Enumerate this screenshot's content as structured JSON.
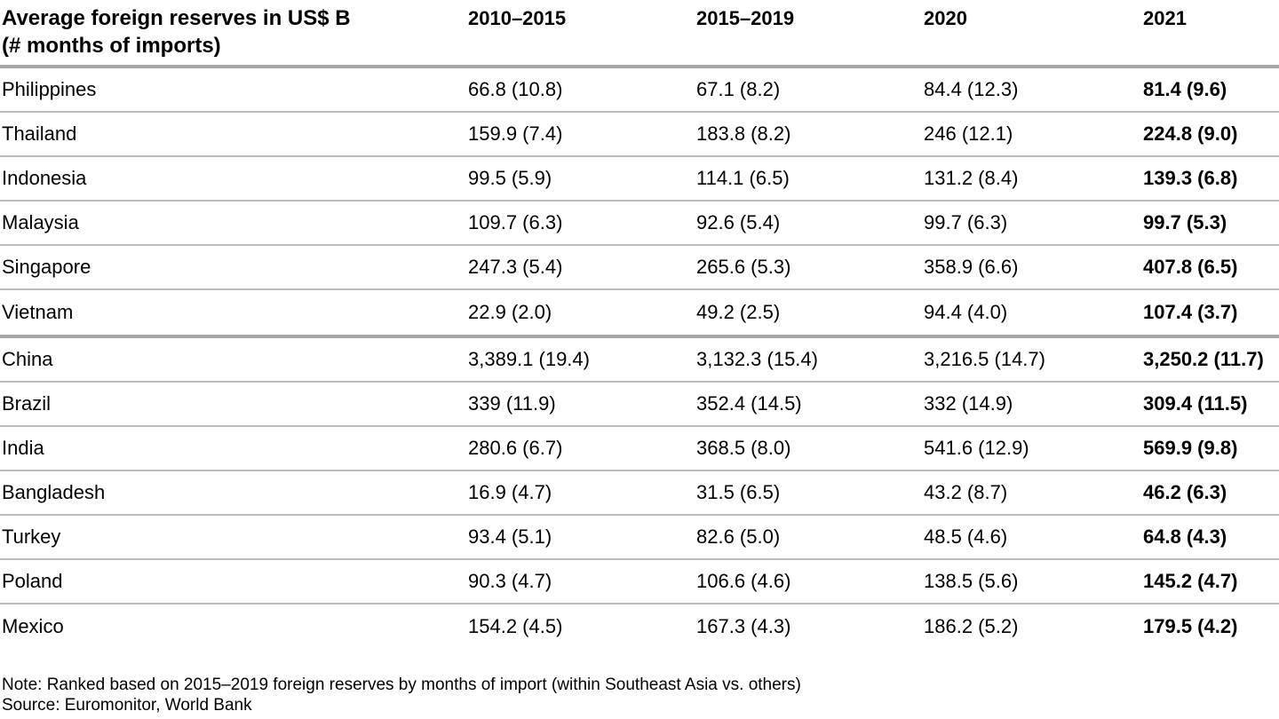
{
  "table": {
    "header": {
      "title_line1": "Average foreign reserves in US$ B",
      "title_line2": "(# months of imports)",
      "columns": [
        "2010–2015",
        "2015–2019",
        "2020",
        "2021"
      ]
    },
    "groups": [
      {
        "region": "Southeast Asia",
        "rows": [
          {
            "country": "Philippines",
            "values": [
              "66.8 (10.8)",
              "67.1 (8.2)",
              "84.4 (12.3)",
              "81.4 (9.6)"
            ]
          },
          {
            "country": "Thailand",
            "values": [
              "159.9 (7.4)",
              "183.8 (8.2)",
              "246 (12.1)",
              "224.8 (9.0)"
            ]
          },
          {
            "country": "Indonesia",
            "values": [
              "99.5 (5.9)",
              "114.1 (6.5)",
              "131.2 (8.4)",
              "139.3 (6.8)"
            ]
          },
          {
            "country": "Malaysia",
            "values": [
              "109.7 (6.3)",
              "92.6 (5.4)",
              "99.7 (6.3)",
              "99.7 (5.3)"
            ]
          },
          {
            "country": "Singapore",
            "values": [
              "247.3 (5.4)",
              "265.6 (5.3)",
              "358.9 (6.6)",
              "407.8 (6.5)"
            ]
          },
          {
            "country": "Vietnam",
            "values": [
              "22.9 (2.0)",
              "49.2 (2.5)",
              "94.4 (4.0)",
              "107.4 (3.7)"
            ]
          }
        ]
      },
      {
        "region": "Others",
        "rows": [
          {
            "country": "China",
            "values": [
              "3,389.1 (19.4)",
              "3,132.3 (15.4)",
              "3,216.5 (14.7)",
              "3,250.2 (11.7)"
            ]
          },
          {
            "country": "Brazil",
            "values": [
              "339 (11.9)",
              "352.4 (14.5)",
              "332 (14.9)",
              "309.4 (11.5)"
            ]
          },
          {
            "country": "India",
            "values": [
              "280.6 (6.7)",
              "368.5 (8.0)",
              "541.6 (12.9)",
              "569.9 (9.8)"
            ]
          },
          {
            "country": "Bangladesh",
            "values": [
              "16.9 (4.7)",
              "31.5 (6.5)",
              "43.2 (8.7)",
              "46.2 (6.3)"
            ]
          },
          {
            "country": "Turkey",
            "values": [
              "93.4 (5.1)",
              "82.6 (5.0)",
              "48.5 (4.6)",
              "64.8 (4.3)"
            ]
          },
          {
            "country": "Poland",
            "values": [
              "90.3 (4.7)",
              "106.6 (4.6)",
              "138.5 (5.6)",
              "145.2 (4.7)"
            ]
          },
          {
            "country": "Mexico",
            "values": [
              "154.2 (4.5)",
              "167.3 (4.3)",
              "186.2 (5.2)",
              "179.5 (4.2)"
            ]
          }
        ]
      }
    ]
  },
  "footer": {
    "note": "Note: Ranked based on 2015–2019 foreign reserves by months of import (within Southeast Asia vs. others)",
    "source": "Source: Euromonitor, World Bank"
  },
  "colors": {
    "text": "#000000",
    "thick_rule": "#a6a6a6",
    "thin_rule": "#bcbcbc",
    "background": "#ffffff"
  },
  "chart_data": {
    "type": "table",
    "title": "Average foreign reserves in US$ B (# months of imports)",
    "columns": [
      "2010–2015",
      "2015–2019",
      "2020",
      "2021"
    ],
    "value_format": "reserves_usd_b (months_of_imports)",
    "rows": [
      {
        "country": "Philippines",
        "group": "Southeast Asia",
        "reserves_usd_b": [
          66.8,
          67.1,
          84.4,
          81.4
        ],
        "months_of_imports": [
          10.8,
          8.2,
          12.3,
          9.6
        ]
      },
      {
        "country": "Thailand",
        "group": "Southeast Asia",
        "reserves_usd_b": [
          159.9,
          183.8,
          246,
          224.8
        ],
        "months_of_imports": [
          7.4,
          8.2,
          12.1,
          9.0
        ]
      },
      {
        "country": "Indonesia",
        "group": "Southeast Asia",
        "reserves_usd_b": [
          99.5,
          114.1,
          131.2,
          139.3
        ],
        "months_of_imports": [
          5.9,
          6.5,
          8.4,
          6.8
        ]
      },
      {
        "country": "Malaysia",
        "group": "Southeast Asia",
        "reserves_usd_b": [
          109.7,
          92.6,
          99.7,
          99.7
        ],
        "months_of_imports": [
          6.3,
          5.4,
          6.3,
          5.3
        ]
      },
      {
        "country": "Singapore",
        "group": "Southeast Asia",
        "reserves_usd_b": [
          247.3,
          265.6,
          358.9,
          407.8
        ],
        "months_of_imports": [
          5.4,
          5.3,
          6.6,
          6.5
        ]
      },
      {
        "country": "Vietnam",
        "group": "Southeast Asia",
        "reserves_usd_b": [
          22.9,
          49.2,
          94.4,
          107.4
        ],
        "months_of_imports": [
          2.0,
          2.5,
          4.0,
          3.7
        ]
      },
      {
        "country": "China",
        "group": "Others",
        "reserves_usd_b": [
          3389.1,
          3132.3,
          3216.5,
          3250.2
        ],
        "months_of_imports": [
          19.4,
          15.4,
          14.7,
          11.7
        ]
      },
      {
        "country": "Brazil",
        "group": "Others",
        "reserves_usd_b": [
          339,
          352.4,
          332,
          309.4
        ],
        "months_of_imports": [
          11.9,
          14.5,
          14.9,
          11.5
        ]
      },
      {
        "country": "India",
        "group": "Others",
        "reserves_usd_b": [
          280.6,
          368.5,
          541.6,
          569.9
        ],
        "months_of_imports": [
          6.7,
          8.0,
          12.9,
          9.8
        ]
      },
      {
        "country": "Bangladesh",
        "group": "Others",
        "reserves_usd_b": [
          16.9,
          31.5,
          43.2,
          46.2
        ],
        "months_of_imports": [
          4.7,
          6.5,
          8.7,
          6.3
        ]
      },
      {
        "country": "Turkey",
        "group": "Others",
        "reserves_usd_b": [
          93.4,
          82.6,
          48.5,
          64.8
        ],
        "months_of_imports": [
          5.1,
          5.0,
          4.6,
          4.3
        ]
      },
      {
        "country": "Poland",
        "group": "Others",
        "reserves_usd_b": [
          90.3,
          106.6,
          138.5,
          145.2
        ],
        "months_of_imports": [
          4.7,
          4.6,
          5.6,
          4.7
        ]
      },
      {
        "country": "Mexico",
        "group": "Others",
        "reserves_usd_b": [
          154.2,
          167.3,
          186.2,
          179.5
        ],
        "months_of_imports": [
          4.5,
          4.3,
          5.2,
          4.2
        ]
      }
    ],
    "notes": [
      "Note: Ranked based on 2015–2019 foreign reserves by months of import (within Southeast Asia vs. others)",
      "Source: Euromonitor, World Bank"
    ]
  }
}
